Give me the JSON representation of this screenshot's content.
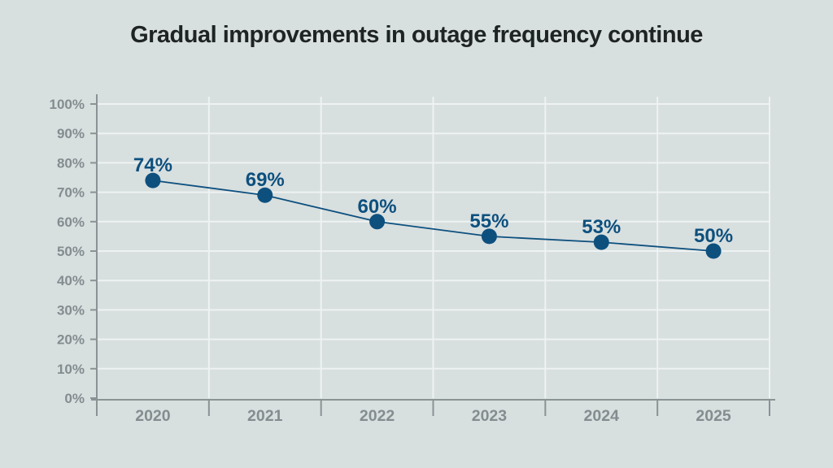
{
  "page": {
    "background": "#d8dfdf"
  },
  "header": {
    "title": "Gradual improvements in outage frequency continue"
  },
  "colors": {
    "background": "#d8dfdf",
    "accent": "#0d507e",
    "axis": "#8a9394",
    "tick_label": "#838d8f",
    "grid": "#eef2f2",
    "title": "#1e2323"
  },
  "chart_data": {
    "type": "line",
    "title": "Gradual improvements in outage frequency continue",
    "categories": [
      "2020",
      "2021",
      "2022",
      "2023",
      "2024",
      "2025"
    ],
    "values": [
      74,
      69,
      60,
      55,
      53,
      50
    ],
    "data_labels": [
      "74%",
      "69%",
      "60%",
      "55%",
      "53%",
      "50%"
    ],
    "ytick_labels": [
      "0%",
      "10%",
      "20%",
      "30%",
      "40%",
      "50%",
      "60%",
      "70%",
      "80%",
      "90%",
      "100%"
    ],
    "ylim": [
      0,
      100
    ],
    "ytick_step": 10,
    "xlabel": "",
    "ylabel": "",
    "grid": true,
    "legend": "none",
    "marker": "circle"
  }
}
